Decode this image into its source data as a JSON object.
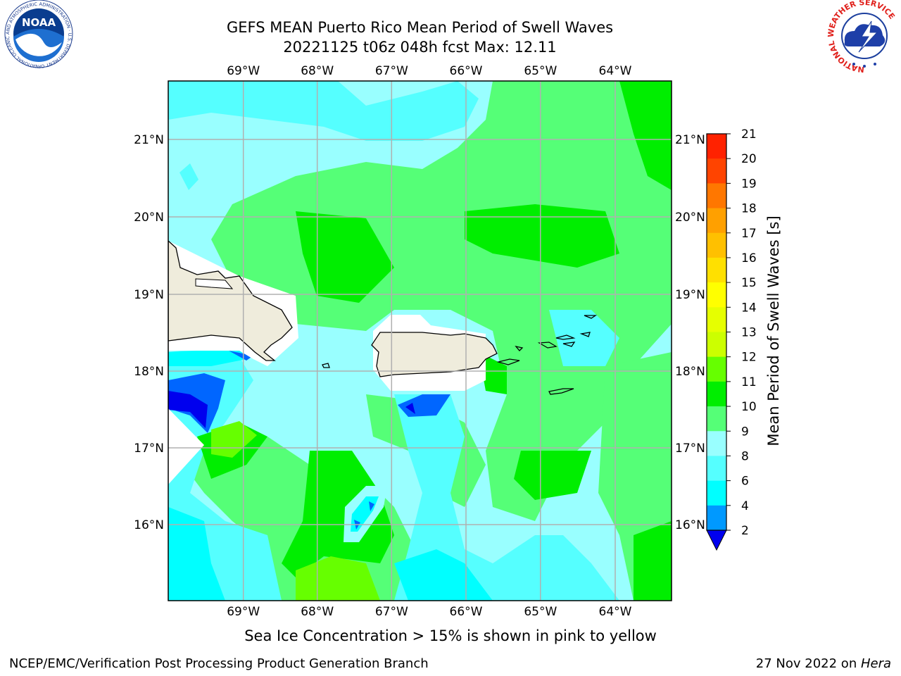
{
  "header": {
    "title_line1": "GEFS MEAN Puerto Rico Mean Period of Swell Waves",
    "title_line2": "20221125 t06z 048h fcst   Max: 12.11"
  },
  "logos": {
    "left": "noaa-logo",
    "right": "nws-logo",
    "noaa_text": "NOAA",
    "noaa_ring_text": "NATIONAL OCEANIC AND ATMOSPHERIC ADMINISTRATION · U.S. DEPARTMENT OF COMMERCE",
    "nws_ring_text": "NATIONAL WEATHER SERVICE"
  },
  "map": {
    "lon_labels": [
      "69°W",
      "68°W",
      "67°W",
      "66°W",
      "65°W",
      "64°W"
    ],
    "lat_labels": [
      "21°N",
      "20°N",
      "19°N",
      "18°N",
      "17°N",
      "16°N"
    ],
    "lon_range": [
      -70,
      -63.3
    ],
    "lat_range": [
      15,
      21.8
    ],
    "land_color": "#efecdc",
    "grid_color": "#b0b0b0"
  },
  "colorbar": {
    "label": "Mean Period of Swell Waves [s]",
    "ticks": [
      "21",
      "20",
      "19",
      "18",
      "17",
      "16",
      "15",
      "14",
      "13",
      "12",
      "11",
      "10",
      "9",
      "8",
      "6",
      "4",
      "2"
    ],
    "colors": [
      "#ff0000",
      "#ff2200",
      "#ff4400",
      "#ff7700",
      "#ffa000",
      "#ffc000",
      "#ffe000",
      "#ffff00",
      "#e6ff00",
      "#ccff00",
      "#66ff00",
      "#00ee00",
      "#55ff77",
      "#99ffff",
      "#55ffff",
      "#00ffff",
      "#0099ff",
      "#0066ff"
    ],
    "under_color": "#0000ee"
  },
  "caption": "Sea Ice Concentration > 15% is shown in pink to yellow",
  "footer": {
    "left": "NCEP/EMC/Verification Post Processing Product Generation Branch",
    "right_prefix": "27 Nov 2022 on ",
    "right_host": "Hera"
  }
}
